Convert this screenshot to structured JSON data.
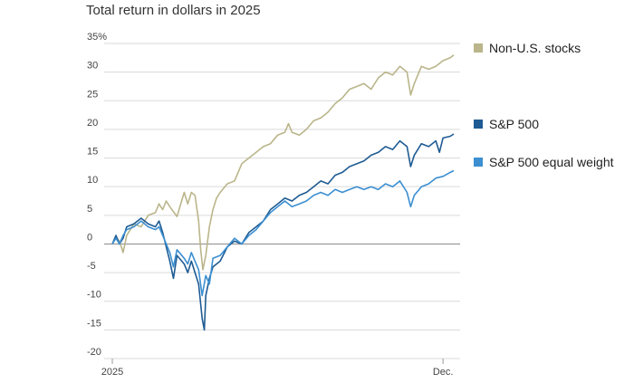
{
  "chart_data": {
    "type": "line",
    "title": "Total return in dollars in 2025",
    "xlabel": "",
    "ylabel": "",
    "ylim": [
      -20,
      35
    ],
    "y_ticks": [
      35,
      30,
      25,
      20,
      15,
      10,
      5,
      0,
      -5,
      -10,
      -15,
      -20
    ],
    "y_tick_labels": [
      "35%",
      "30",
      "25",
      "20",
      "15",
      "10",
      "5",
      "0",
      "-5",
      "-10",
      "-15",
      "-20"
    ],
    "x_range": [
      0,
      48
    ],
    "x_ticks": [
      {
        "x": 0,
        "label": "2025"
      },
      {
        "x": 46,
        "label": "Dec."
      }
    ],
    "grid": true,
    "legend": "right",
    "series": [
      {
        "name": "Non-U.S. stocks",
        "color": "#bab58a",
        "points": [
          [
            0,
            0
          ],
          [
            0.5,
            1.2
          ],
          [
            1,
            0.5
          ],
          [
            1.5,
            -1.5
          ],
          [
            2,
            1.5
          ],
          [
            3,
            3.5
          ],
          [
            4,
            3
          ],
          [
            5,
            5
          ],
          [
            6,
            5.5
          ],
          [
            6.5,
            7
          ],
          [
            7,
            6
          ],
          [
            7.5,
            7.5
          ],
          [
            8,
            6.5
          ],
          [
            9,
            4.8
          ],
          [
            10,
            9
          ],
          [
            10.5,
            7
          ],
          [
            11,
            9
          ],
          [
            11.5,
            8.5
          ],
          [
            12,
            4
          ],
          [
            12.3,
            -1
          ],
          [
            12.6,
            -4.5
          ],
          [
            13,
            -2
          ],
          [
            13.5,
            3
          ],
          [
            14,
            6
          ],
          [
            14.5,
            8
          ],
          [
            15,
            9
          ],
          [
            16,
            10.5
          ],
          [
            17,
            11
          ],
          [
            17.5,
            12.5
          ],
          [
            18,
            14
          ],
          [
            19,
            15
          ],
          [
            20,
            16
          ],
          [
            21,
            17
          ],
          [
            22,
            17.5
          ],
          [
            23,
            19
          ],
          [
            24,
            19.5
          ],
          [
            24.5,
            21
          ],
          [
            25,
            19.5
          ],
          [
            26,
            19
          ],
          [
            27,
            20
          ],
          [
            28,
            21.5
          ],
          [
            29,
            22
          ],
          [
            30,
            23
          ],
          [
            31,
            24.5
          ],
          [
            32,
            25.5
          ],
          [
            33,
            27
          ],
          [
            34,
            27.5
          ],
          [
            35,
            28
          ],
          [
            36,
            27
          ],
          [
            37,
            29
          ],
          [
            38,
            30
          ],
          [
            39,
            29.5
          ],
          [
            40,
            31
          ],
          [
            41,
            30
          ],
          [
            41.5,
            26
          ],
          [
            42,
            28
          ],
          [
            43,
            31
          ],
          [
            44,
            30.5
          ],
          [
            45,
            31
          ],
          [
            46,
            32
          ],
          [
            47,
            32.5
          ],
          [
            47.5,
            33
          ]
        ]
      },
      {
        "name": "S&P 500",
        "color": "#1e5b94",
        "points": [
          [
            0,
            0
          ],
          [
            0.5,
            1.5
          ],
          [
            1,
            0
          ],
          [
            1.5,
            1
          ],
          [
            2,
            3
          ],
          [
            3,
            3.5
          ],
          [
            4,
            4.5
          ],
          [
            5,
            3.5
          ],
          [
            6,
            3
          ],
          [
            6.5,
            4
          ],
          [
            7,
            2
          ],
          [
            8,
            -3
          ],
          [
            8.5,
            -6
          ],
          [
            9,
            -2
          ],
          [
            10,
            -3.5
          ],
          [
            10.5,
            -5
          ],
          [
            11,
            -3
          ],
          [
            12,
            -7
          ],
          [
            12.5,
            -13
          ],
          [
            12.8,
            -15
          ],
          [
            13,
            -9
          ],
          [
            13.5,
            -6
          ],
          [
            14,
            -4
          ],
          [
            15,
            -3
          ],
          [
            16,
            -0.5
          ],
          [
            17,
            0.5
          ],
          [
            18,
            0
          ],
          [
            19,
            2
          ],
          [
            20,
            3
          ],
          [
            21,
            4
          ],
          [
            22,
            6
          ],
          [
            23,
            7
          ],
          [
            24,
            8
          ],
          [
            25,
            7.5
          ],
          [
            26,
            8.5
          ],
          [
            27,
            9
          ],
          [
            28,
            10
          ],
          [
            29,
            11
          ],
          [
            30,
            10.5
          ],
          [
            31,
            12
          ],
          [
            32,
            12.5
          ],
          [
            33,
            13.5
          ],
          [
            34,
            14
          ],
          [
            35,
            14.5
          ],
          [
            36,
            15.5
          ],
          [
            37,
            16
          ],
          [
            38,
            17
          ],
          [
            39,
            16.5
          ],
          [
            40,
            18
          ],
          [
            41,
            17
          ],
          [
            41.5,
            13.5
          ],
          [
            42,
            15.5
          ],
          [
            43,
            17.5
          ],
          [
            44,
            17
          ],
          [
            45,
            18
          ],
          [
            45.5,
            16
          ],
          [
            46,
            18.5
          ],
          [
            47,
            18.8
          ],
          [
            47.5,
            19.2
          ]
        ]
      },
      {
        "name": "S&P 500 equal weight",
        "color": "#3c8fd1",
        "points": [
          [
            0,
            0
          ],
          [
            0.5,
            1
          ],
          [
            1,
            0
          ],
          [
            1.5,
            1.5
          ],
          [
            2,
            2.5
          ],
          [
            3,
            3
          ],
          [
            4,
            4
          ],
          [
            5,
            3
          ],
          [
            6,
            2.5
          ],
          [
            6.5,
            3
          ],
          [
            7,
            1.5
          ],
          [
            8,
            -1.5
          ],
          [
            8.5,
            -4
          ],
          [
            9,
            -1
          ],
          [
            10,
            -2.5
          ],
          [
            10.5,
            -3.5
          ],
          [
            11,
            -1.5
          ],
          [
            12,
            -4.5
          ],
          [
            12.5,
            -9
          ],
          [
            13,
            -5.5
          ],
          [
            13.5,
            -7
          ],
          [
            14,
            -2.5
          ],
          [
            15,
            -2
          ],
          [
            16,
            -0.5
          ],
          [
            17,
            1
          ],
          [
            18,
            0
          ],
          [
            19,
            1.5
          ],
          [
            20,
            2.5
          ],
          [
            21,
            4
          ],
          [
            22,
            5.5
          ],
          [
            23,
            6.5
          ],
          [
            24,
            7.5
          ],
          [
            25,
            6.5
          ],
          [
            26,
            7
          ],
          [
            27,
            7.5
          ],
          [
            28,
            8.5
          ],
          [
            29,
            9
          ],
          [
            30,
            8.5
          ],
          [
            31,
            9.5
          ],
          [
            32,
            9
          ],
          [
            33,
            9.5
          ],
          [
            34,
            10
          ],
          [
            35,
            9.5
          ],
          [
            36,
            10
          ],
          [
            37,
            9.5
          ],
          [
            38,
            10.5
          ],
          [
            39,
            10
          ],
          [
            40,
            11
          ],
          [
            41,
            9
          ],
          [
            41.5,
            6.5
          ],
          [
            42,
            8.5
          ],
          [
            43,
            10
          ],
          [
            44,
            10.5
          ],
          [
            45,
            11.5
          ],
          [
            46,
            11.8
          ],
          [
            47,
            12.5
          ],
          [
            47.5,
            12.8
          ]
        ]
      }
    ]
  }
}
